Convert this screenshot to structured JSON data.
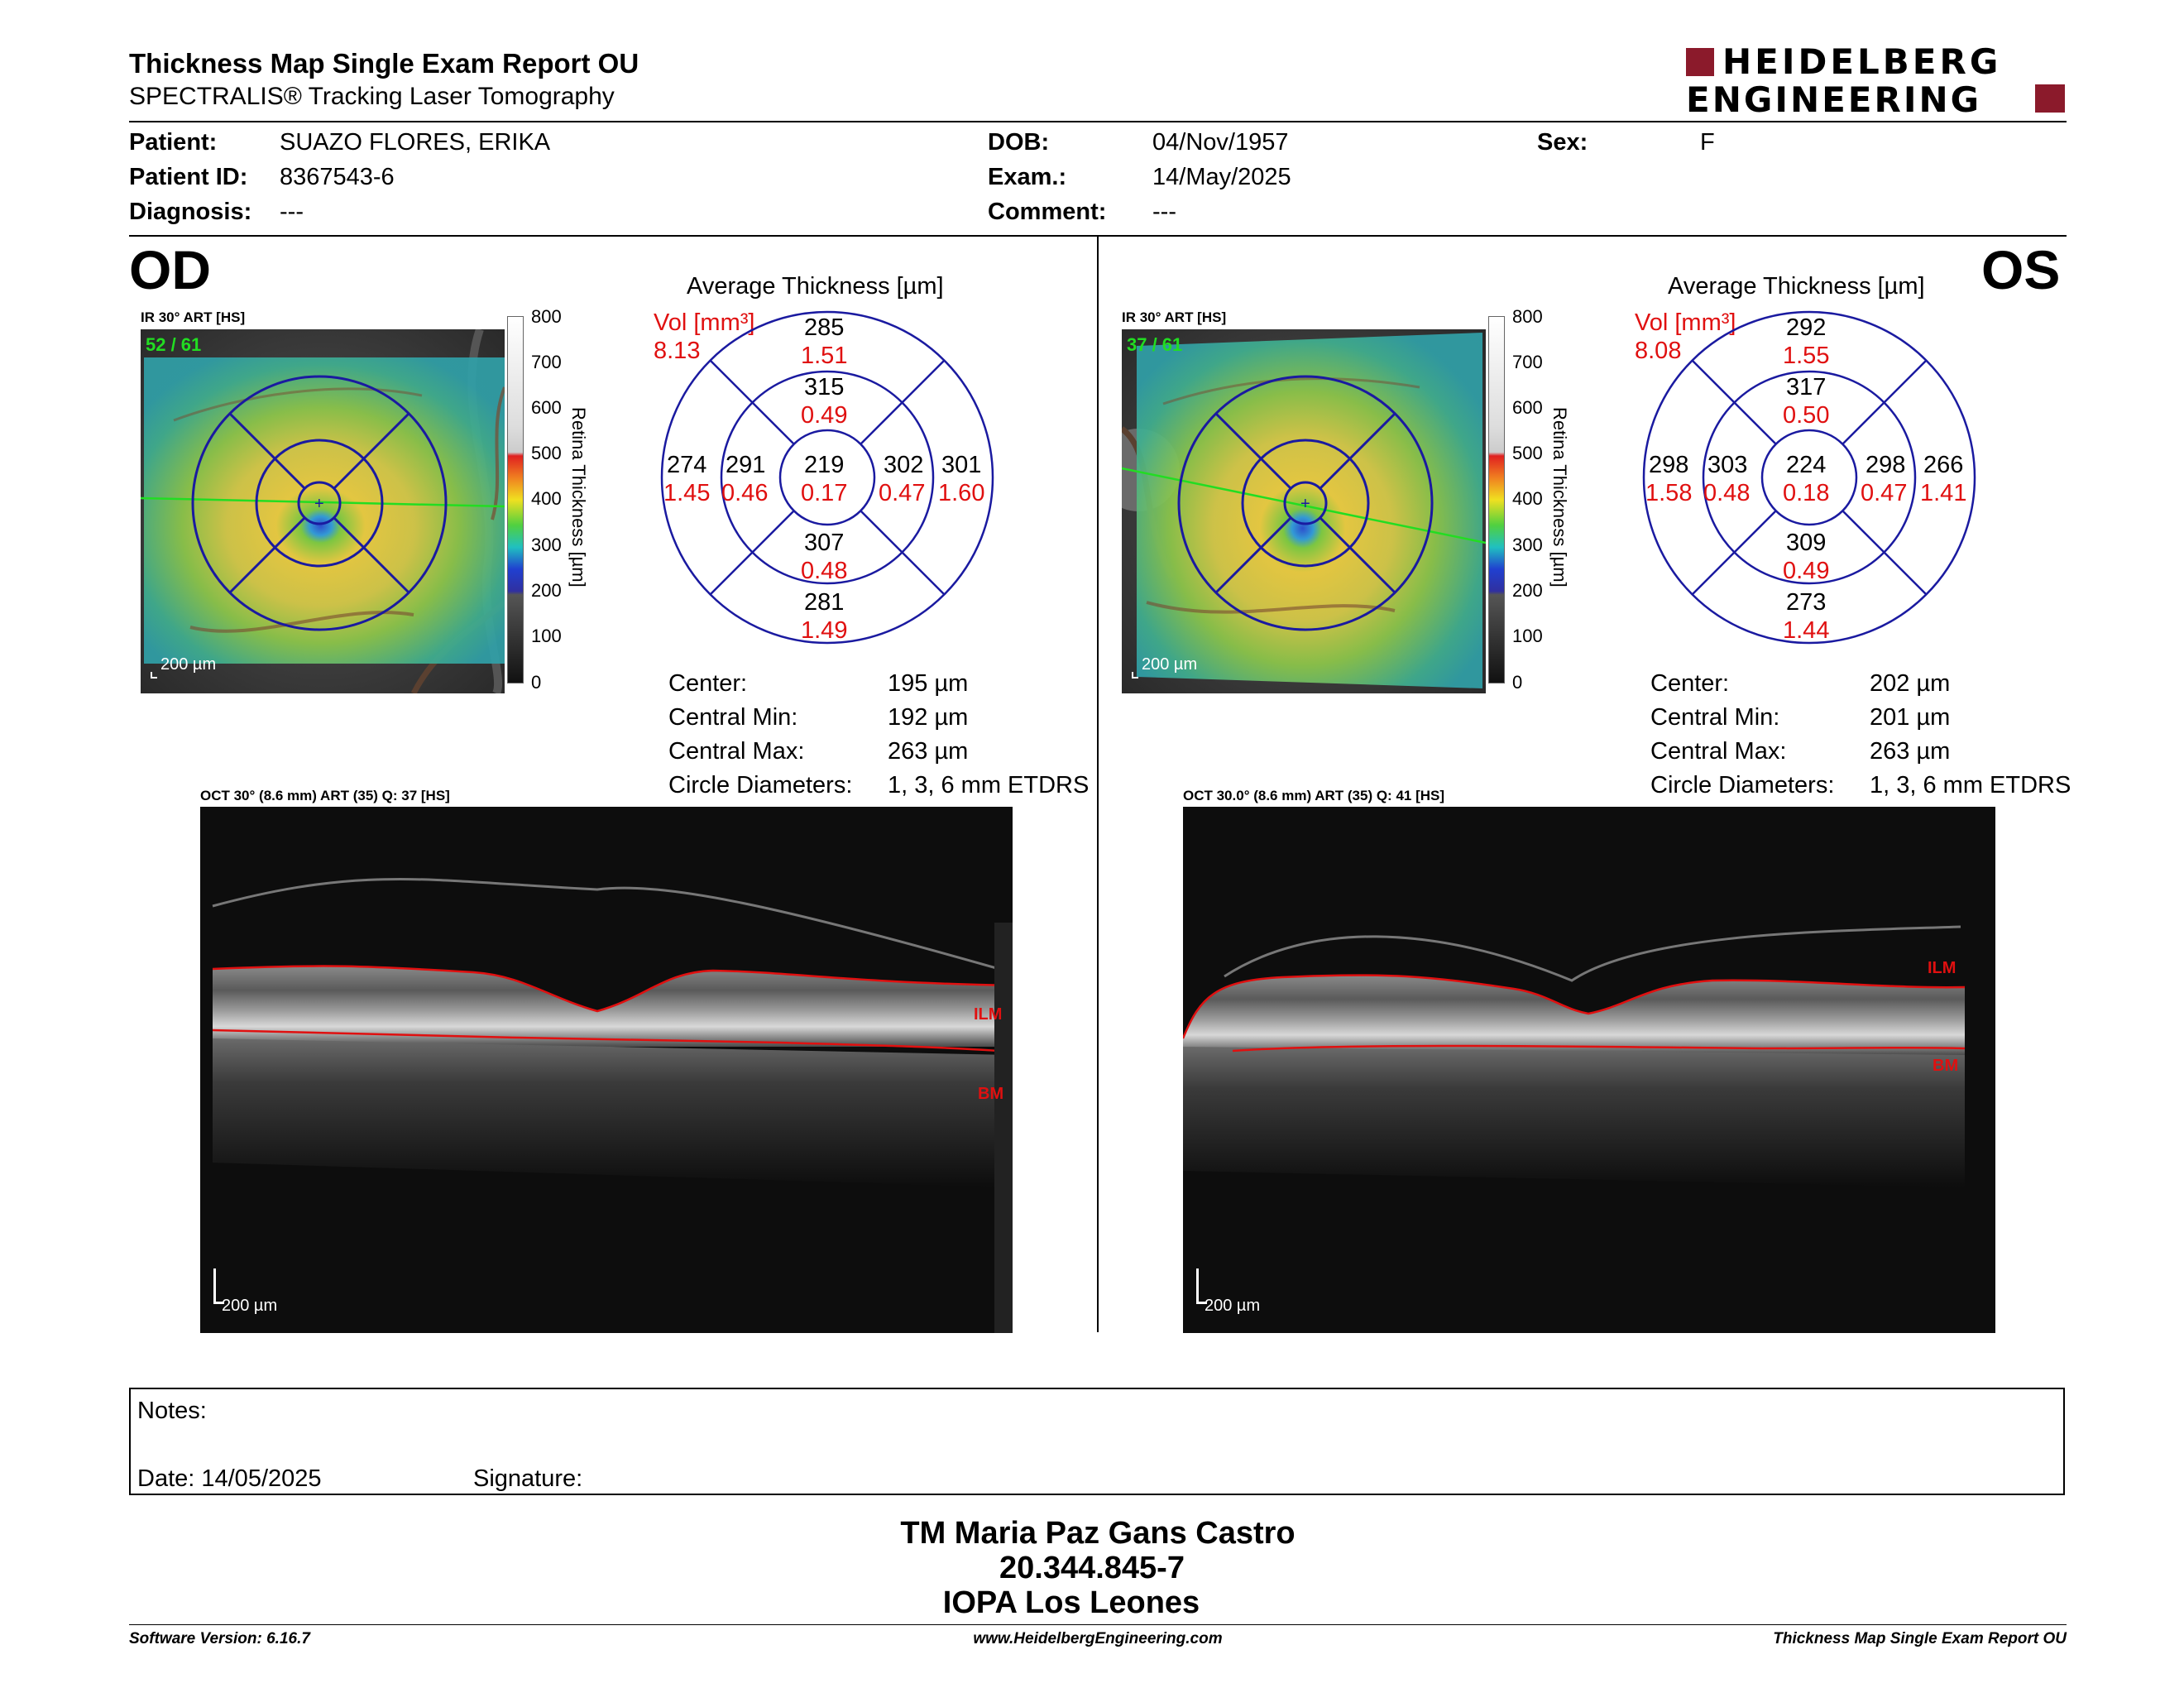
{
  "header": {
    "title": "Thickness Map Single Exam Report OU",
    "subtitle": "SPECTRALIS® Tracking Laser Tomography",
    "logo_line1": "HEIDELBERG",
    "logo_line2": "ENGINEERING",
    "brand_color": "#8b1a2b"
  },
  "patient": {
    "patient_label": "Patient:",
    "patient_value": "SUAZO FLORES, ERIKA",
    "id_label": "Patient ID:",
    "id_value": "8367543-6",
    "diagnosis_label": "Diagnosis:",
    "diagnosis_value": "---",
    "dob_label": "DOB:",
    "dob_value": "04/Nov/1957",
    "exam_label": "Exam.:",
    "exam_value": "14/May/2025",
    "comment_label": "Comment:",
    "comment_value": "---",
    "sex_label": "Sex:",
    "sex_value": "F"
  },
  "colorbar": {
    "title": "Retina Thickness [µm]",
    "ticks": [
      "800",
      "700",
      "600",
      "500",
      "400",
      "300",
      "200",
      "100",
      "0"
    ]
  },
  "od": {
    "eye_label": "OD",
    "ir_label": "IR 30° ART [HS]",
    "ir_overlay": "52 / 61",
    "scale_label": "200 µm",
    "avg_title": "Average Thickness [µm]",
    "vol_label": "Vol [mm³]",
    "vol_total": "8.13",
    "center_thickness": "219",
    "center_vol": "0.17",
    "inner_sup": "315",
    "inner_sup_vol": "0.49",
    "inner_inf": "307",
    "inner_inf_vol": "0.48",
    "inner_left": "291",
    "inner_left_vol": "0.46",
    "inner_right": "302",
    "inner_right_vol": "0.47",
    "outer_sup": "285",
    "outer_sup_vol": "1.51",
    "outer_inf": "281",
    "outer_inf_vol": "1.49",
    "outer_left": "274",
    "outer_left_vol": "1.45",
    "outer_right": "301",
    "outer_right_vol": "1.60",
    "stats": {
      "center_label": "Center:",
      "center_value": "195 µm",
      "min_label": "Central Min:",
      "min_value": "192 µm",
      "max_label": "Central Max:",
      "max_value": "263 µm",
      "circle_label": "Circle Diameters:",
      "circle_value": "1, 3, 6 mm ETDRS"
    },
    "oct_label": "OCT 30° (8.6 mm) ART (35) Q: 37 [HS]",
    "ilm_label": "ILM",
    "bm_label": "BM",
    "oct_scale_label": "200 µm"
  },
  "os": {
    "eye_label": "OS",
    "ir_label": "IR 30° ART [HS]",
    "ir_overlay": "37 / 61",
    "scale_label": "200 µm",
    "avg_title": "Average Thickness [µm]",
    "vol_label": "Vol [mm³]",
    "vol_total": "8.08",
    "center_thickness": "224",
    "center_vol": "0.18",
    "inner_sup": "317",
    "inner_sup_vol": "0.50",
    "inner_inf": "309",
    "inner_inf_vol": "0.49",
    "inner_left": "303",
    "inner_left_vol": "0.48",
    "inner_right": "298",
    "inner_right_vol": "0.47",
    "outer_sup": "292",
    "outer_sup_vol": "1.55",
    "outer_inf": "273",
    "outer_inf_vol": "1.44",
    "outer_left": "298",
    "outer_left_vol": "1.58",
    "outer_right": "266",
    "outer_right_vol": "1.41",
    "stats": {
      "center_label": "Center:",
      "center_value": "202 µm",
      "min_label": "Central Min:",
      "min_value": "201 µm",
      "max_label": "Central Max:",
      "max_value": "263 µm",
      "circle_label": "Circle Diameters:",
      "circle_value": "1, 3, 6 mm ETDRS"
    },
    "oct_label": "OCT 30.0° (8.6 mm) ART (35) Q: 41 [HS]",
    "ilm_label": "ILM",
    "bm_label": "BM",
    "oct_scale_label": "200 µm"
  },
  "notes": {
    "notes_label": "Notes:",
    "date_label": "Date: 14/05/2025",
    "signature_label": "Signature:"
  },
  "signature_block": {
    "name": "TM Maria Paz Gans Castro",
    "rut": "20.344.845-7",
    "institution": "IOPA Los Leones"
  },
  "footer": {
    "software": "Software Version: 6.16.7",
    "website": "www.HeidelbergEngineering.com",
    "report_name": "Thickness Map Single Exam Report OU"
  },
  "colors": {
    "volume_red": "#e01010",
    "etdrs_grid": "#1a1aa0",
    "scan_line": "#22dd22"
  }
}
